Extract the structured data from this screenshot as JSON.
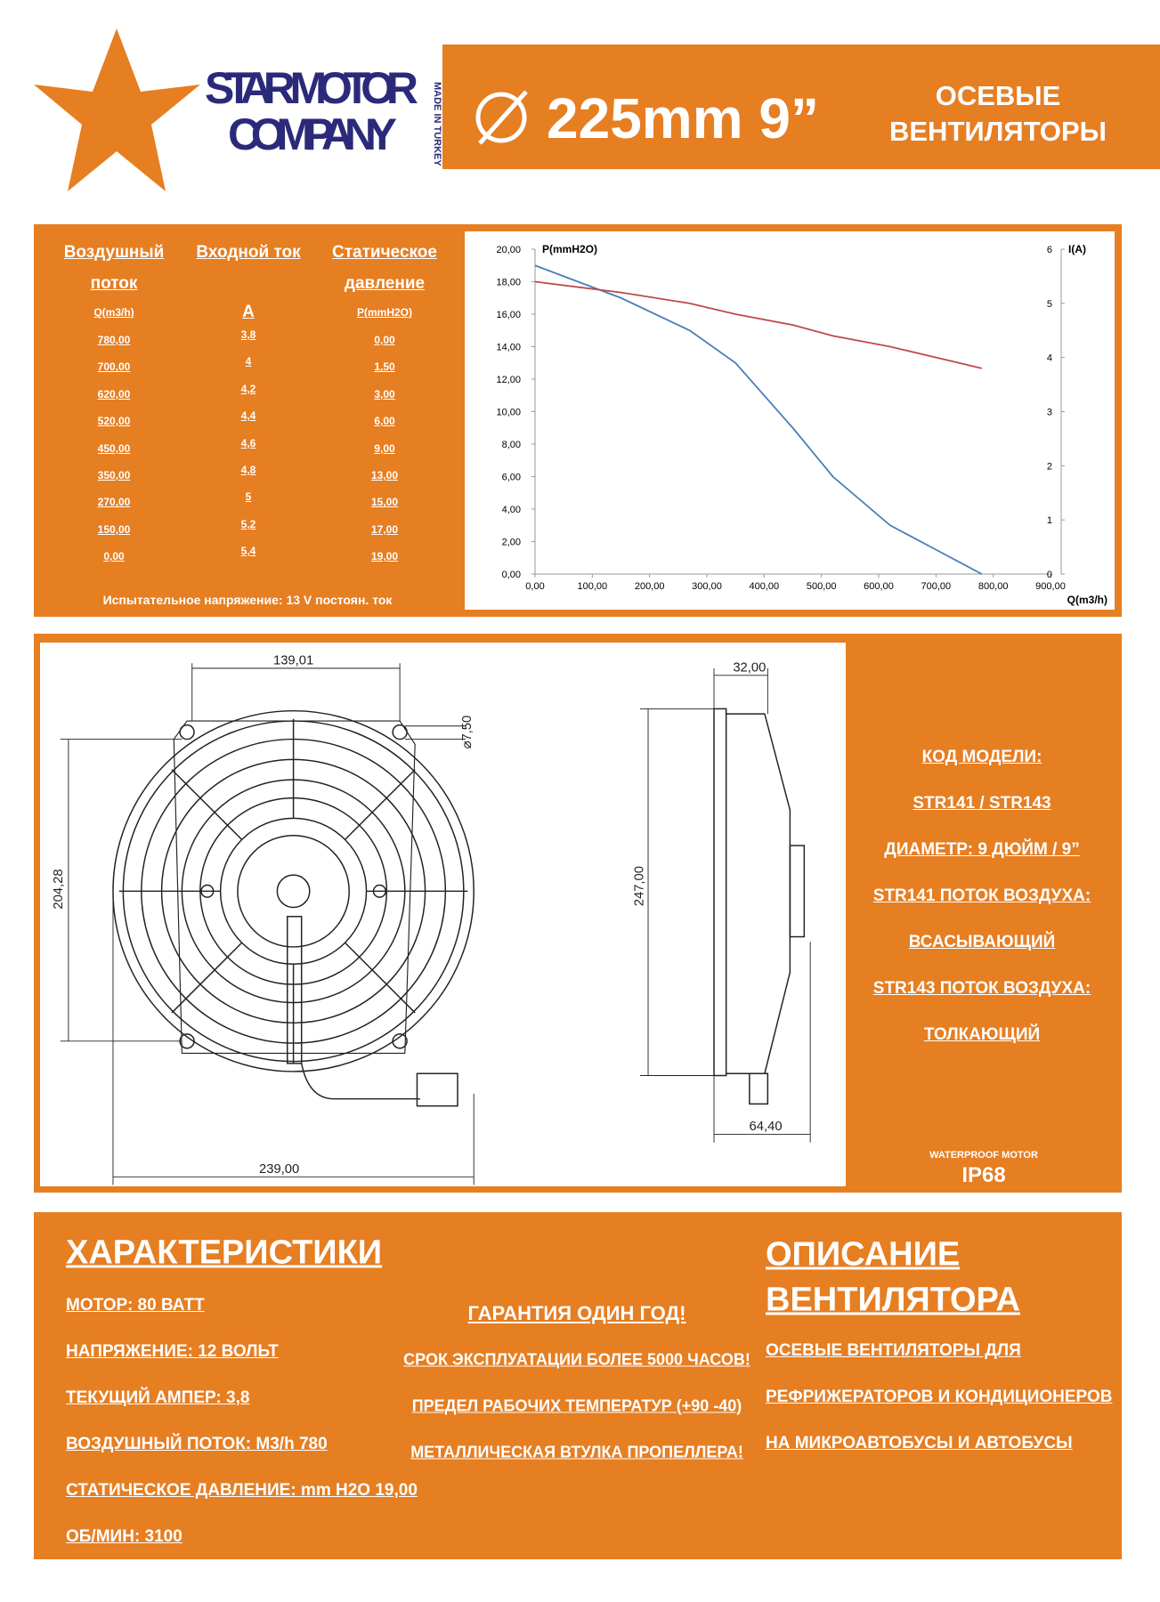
{
  "header": {
    "brand_line1": "STAR MOTOR",
    "brand_line2": "COMPANY",
    "made_in": "MADE IN TURKEY",
    "size": "225mm 9”",
    "category_line1": "ОСЕВЫЕ",
    "category_line2": "ВЕНТИЛЯТОРЫ"
  },
  "table": {
    "headers": [
      [
        "Воздушный",
        "поток"
      ],
      [
        "Входной ток"
      ],
      [
        "Статическое",
        "давление"
      ]
    ],
    "units": [
      "Q(m3/h)",
      "A",
      "P(mmH2O)"
    ],
    "rows": [
      [
        "780,00",
        "3,8",
        "0,00"
      ],
      [
        "700,00",
        "4",
        "1,50"
      ],
      [
        "620,00",
        "4,2",
        "3,00"
      ],
      [
        "520,00",
        "4,4",
        "6,00"
      ],
      [
        "450,00",
        "4,6",
        "9,00"
      ],
      [
        "350,00",
        "4,8",
        "13,00"
      ],
      [
        "270,00",
        "5",
        "15,00"
      ],
      [
        "150,00",
        "5,2",
        "17,00"
      ],
      [
        "0,00",
        "5,4",
        "19,00"
      ]
    ],
    "note": "Испытательное напряжение: 13 V постоян. ток"
  },
  "chart_data": {
    "type": "line",
    "x_label": "Q(m3/h)",
    "y_label": "P(mmH2O)",
    "y2_label": "I(A)",
    "x": [
      0,
      150,
      270,
      350,
      450,
      520,
      620,
      700,
      780
    ],
    "series": [
      {
        "color": "#4a7ebb",
        "values": [
          19,
          17,
          15,
          13,
          9,
          6,
          3,
          1.5,
          0
        ]
      },
      {
        "color": "#be4b48",
        "axis": "y2",
        "values": [
          5.4,
          5.2,
          5,
          4.8,
          4.6,
          4.4,
          4.2,
          4,
          3.8
        ]
      }
    ],
    "xlim": [
      0,
      900
    ],
    "xticks": [
      {
        "value": 0,
        "label": "0,00"
      },
      {
        "value": 100,
        "label": "100,00"
      },
      {
        "value": 200,
        "label": "200,00"
      },
      {
        "value": 300,
        "label": "300,00"
      },
      {
        "value": 400,
        "label": "400,00"
      },
      {
        "value": 500,
        "label": "500,00"
      },
      {
        "value": 600,
        "label": "600,00"
      },
      {
        "value": 700,
        "label": "700,00"
      },
      {
        "value": 800,
        "label": "800,00"
      },
      {
        "value": 900,
        "label": "900,00"
      }
    ],
    "ylim": [
      0,
      20
    ],
    "yticks": [
      {
        "value": 0,
        "label": "0,00"
      },
      {
        "value": 2,
        "label": "2,00"
      },
      {
        "value": 4,
        "label": "4,00"
      },
      {
        "value": 6,
        "label": "6,00"
      },
      {
        "value": 8,
        "label": "8,00"
      },
      {
        "value": 10,
        "label": "10,00"
      },
      {
        "value": 12,
        "label": "12,00"
      },
      {
        "value": 14,
        "label": "14,00"
      },
      {
        "value": 16,
        "label": "16,00"
      },
      {
        "value": 18,
        "label": "18,00"
      },
      {
        "value": 20,
        "label": "20,00"
      }
    ],
    "y2lim": [
      0,
      6
    ],
    "y2ticks": [
      0,
      1,
      2,
      3,
      4,
      5,
      6
    ],
    "grid": false
  },
  "drawing": {
    "dimensions": [
      "139,01",
      "⌀7,50",
      "204,28",
      "239,00",
      "32,00",
      "247,00",
      "64,40"
    ]
  },
  "model_info": [
    "КОД МОДЕЛИ:",
    "STR141 / STR143",
    "ДИАМЕТР: 9 ДЮЙМ / 9”",
    "STR141 ПОТОК ВОЗДУХА:",
    "ВСАСЫВАЮЩИЙ",
    "STR143 ПОТОК ВОЗДУХА:",
    "ТОЛКАЮЩИЙ"
  ],
  "badge": {
    "small": "WATERPROOF MOTOR",
    "big": "IP68"
  },
  "specs": {
    "title": "ХАРАКТЕРИСТИКИ",
    "items": [
      "МОТОР: 80 ВАТТ",
      "НАПРЯЖЕНИЕ: 12 ВОЛЬТ",
      "ТЕКУЩИЙ АМПЕР: 3,8",
      "ВОЗДУШНЫЙ ПОТОК: M3/h 780",
      "СТАТИЧЕСКОЕ ДАВЛЕНИЕ: mm H2O 19,00",
      "ОБ/МИН: 3100"
    ]
  },
  "features": [
    "ГАРАНТИЯ ОДИН ГОД!",
    "СРОК ЭКСПЛУАТАЦИИ БОЛЕЕ 5000 ЧАСОВ!",
    "ПРЕДЕЛ РАБОЧИХ ТЕМПЕРАТУР (+90 -40)",
    "МЕТАЛЛИЧЕСКАЯ ВТУЛКА ПРОПЕЛЛЕРА!"
  ],
  "description": {
    "title_lines": [
      "ОПИСАНИЕ",
      "ВЕНТИЛЯТОРА"
    ],
    "items": [
      "ОСЕВЫЕ ВЕНТИЛЯТОРЫ ДЛЯ",
      "РЕФРИЖЕРАТОРОВ И КОНДИЦИОНЕРОВ",
      "НА МИКРОАВТОБУСЫ И АВТОБУСЫ"
    ]
  }
}
